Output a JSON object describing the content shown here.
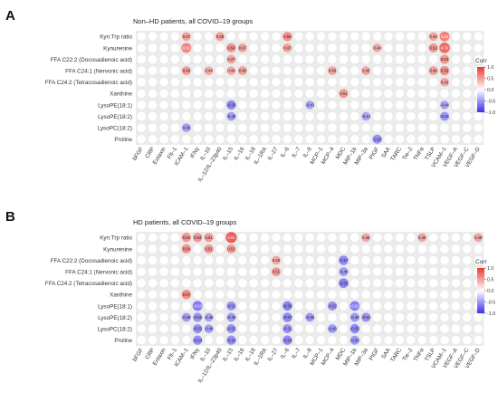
{
  "chart_data": [
    {
      "type": "heatmap",
      "panel_label": "A",
      "title": "Non–HD patients, all COVID–19 groups",
      "rows": [
        "Kyn:Trp ratio",
        "Kynurenine",
        "FFA C22:2 (Docosadienoic acid)",
        "FFA C24:1 (Nervonic acid)",
        "FFA C24:2 (Tetracosadienoic acid)",
        "Xanthine",
        "LysoPE(18:1)",
        "LysoPE(18:2)",
        "LysoPC(18:2)",
        "Proline"
      ],
      "columns": [
        "bFGF",
        "CRP",
        "Eotaxin",
        "Flt–1",
        "ICAM–1",
        "IFNγ",
        "IL–10",
        "IL–12/IL–23p40",
        "IL–15",
        "IL–16",
        "IL–18",
        "IL–1RA",
        "IL–27",
        "IL–6",
        "IL–7",
        "IL–8",
        "MCP–1",
        "MCP–4",
        "MDC",
        "MIP–1b",
        "MIP–3a",
        "PIGF",
        "SAA",
        "TARC",
        "Tie–2",
        "TNFα",
        "TSLP",
        "VCAM–1",
        "VEGF–A",
        "VEGF–C",
        "VEGF–D"
      ],
      "cells": [
        {
          "row": 0,
          "col": 4,
          "value": 0.47
        },
        {
          "row": 0,
          "col": 7,
          "value": 0.48
        },
        {
          "row": 0,
          "col": 13,
          "value": 0.56
        },
        {
          "row": 0,
          "col": 26,
          "value": 0.46
        },
        {
          "row": 0,
          "col": 27,
          "value": 0.63
        },
        {
          "row": 1,
          "col": 4,
          "value": 0.62
        },
        {
          "row": 1,
          "col": 8,
          "value": 0.54
        },
        {
          "row": 1,
          "col": 9,
          "value": 0.47
        },
        {
          "row": 1,
          "col": 13,
          "value": 0.47
        },
        {
          "row": 1,
          "col": 21,
          "value": 0.44
        },
        {
          "row": 1,
          "col": 26,
          "value": 0.52
        },
        {
          "row": 1,
          "col": 27,
          "value": 0.74
        },
        {
          "row": 2,
          "col": 8,
          "value": 0.47
        },
        {
          "row": 2,
          "col": 27,
          "value": 0.53
        },
        {
          "row": 3,
          "col": 4,
          "value": 0.49
        },
        {
          "row": 3,
          "col": 6,
          "value": 0.44
        },
        {
          "row": 3,
          "col": 8,
          "value": 0.44
        },
        {
          "row": 3,
          "col": 9,
          "value": 0.48
        },
        {
          "row": 3,
          "col": 17,
          "value": 0.46
        },
        {
          "row": 3,
          "col": 20,
          "value": 0.45
        },
        {
          "row": 3,
          "col": 26,
          "value": 0.48
        },
        {
          "row": 3,
          "col": 27,
          "value": 0.55
        },
        {
          "row": 4,
          "col": 27,
          "value": 0.45
        },
        {
          "row": 5,
          "col": 18,
          "value": 0.51
        },
        {
          "row": 6,
          "col": 8,
          "value": -0.56
        },
        {
          "row": 6,
          "col": 15,
          "value": -0.43
        },
        {
          "row": 6,
          "col": 27,
          "value": -0.44
        },
        {
          "row": 7,
          "col": 8,
          "value": -0.48
        },
        {
          "row": 7,
          "col": 20,
          "value": -0.44
        },
        {
          "row": 7,
          "col": 27,
          "value": -0.51
        },
        {
          "row": 8,
          "col": 4,
          "value": -0.46
        },
        {
          "row": 9,
          "col": 21,
          "value": -0.53
        }
      ],
      "legend": {
        "title": "Corr",
        "ticks": [
          "1.0",
          "0.5",
          "0.0",
          "-0.5",
          "-1.0"
        ],
        "tick_values": [
          1,
          0.5,
          0,
          -0.5,
          -1
        ],
        "placement": "right"
      },
      "value_range": [
        -1,
        1
      ]
    },
    {
      "type": "heatmap",
      "panel_label": "B",
      "title": "HD patients, all COVID–19 groups",
      "rows": [
        "Kyn:Trp ratio",
        "Kynurenine",
        "FFA C22:2 (Docosadienoic acid)",
        "FFA C24:1 (Nervonic acid)",
        "FFA C24:2 (Tetracosadienoic acid)",
        "Xanthine",
        "LysoPE(18:1)",
        "LysoPE(18:2)",
        "LysoPC(18:2)",
        "Proline"
      ],
      "columns": [
        "bFGF",
        "CRP",
        "Eotaxin",
        "Flt–1",
        "ICAM–1",
        "IFNγ",
        "IL–10",
        "IL–12/IL–23p40",
        "IL–15",
        "IL–16",
        "IL–18",
        "IL–1RA",
        "IL–27",
        "IL–6",
        "IL–7",
        "IL–8",
        "MCP–1",
        "MCP–4",
        "MDC",
        "MIP–1b",
        "MIP–3a",
        "PIGF",
        "SAA",
        "TARC",
        "Tie–2",
        "TNFα",
        "TSLP",
        "VCAM–1",
        "VEGF–A",
        "VEGF–C",
        "VEGF–D"
      ],
      "cells": [
        {
          "row": 0,
          "col": 4,
          "value": 0.54
        },
        {
          "row": 0,
          "col": 5,
          "value": 0.54
        },
        {
          "row": 0,
          "col": 6,
          "value": 0.51
        },
        {
          "row": 0,
          "col": 8,
          "value": 0.81
        },
        {
          "row": 0,
          "col": 20,
          "value": 0.45
        },
        {
          "row": 0,
          "col": 25,
          "value": 0.46
        },
        {
          "row": 0,
          "col": 30,
          "value": 0.46
        },
        {
          "row": 1,
          "col": 4,
          "value": 0.54
        },
        {
          "row": 1,
          "col": 6,
          "value": 0.51
        },
        {
          "row": 1,
          "col": 8,
          "value": 0.51
        },
        {
          "row": 2,
          "col": 12,
          "value": 0.46
        },
        {
          "row": 2,
          "col": 18,
          "value": -0.57
        },
        {
          "row": 3,
          "col": 12,
          "value": 0.51
        },
        {
          "row": 3,
          "col": 18,
          "value": -0.48
        },
        {
          "row": 4,
          "col": 18,
          "value": -0.59
        },
        {
          "row": 5,
          "col": 4,
          "value": 0.57
        },
        {
          "row": 6,
          "col": 5,
          "value": -0.63
        },
        {
          "row": 6,
          "col": 8,
          "value": -0.51
        },
        {
          "row": 6,
          "col": 13,
          "value": -0.58
        },
        {
          "row": 6,
          "col": 17,
          "value": -0.52
        },
        {
          "row": 6,
          "col": 19,
          "value": -0.61
        },
        {
          "row": 7,
          "col": 4,
          "value": -0.48
        },
        {
          "row": 7,
          "col": 5,
          "value": -0.52
        },
        {
          "row": 7,
          "col": 6,
          "value": -0.45
        },
        {
          "row": 7,
          "col": 8,
          "value": -0.49
        },
        {
          "row": 7,
          "col": 13,
          "value": -0.57
        },
        {
          "row": 7,
          "col": 15,
          "value": -0.49
        },
        {
          "row": 7,
          "col": 19,
          "value": -0.49
        },
        {
          "row": 7,
          "col": 20,
          "value": -0.52
        },
        {
          "row": 8,
          "col": 5,
          "value": -0.53
        },
        {
          "row": 8,
          "col": 6,
          "value": -0.46
        },
        {
          "row": 8,
          "col": 8,
          "value": -0.52
        },
        {
          "row": 8,
          "col": 13,
          "value": -0.52
        },
        {
          "row": 8,
          "col": 17,
          "value": -0.48
        },
        {
          "row": 8,
          "col": 19,
          "value": -0.56
        },
        {
          "row": 9,
          "col": 5,
          "value": -0.54
        },
        {
          "row": 9,
          "col": 8,
          "value": -0.54
        },
        {
          "row": 9,
          "col": 13,
          "value": -0.56
        },
        {
          "row": 9,
          "col": 19,
          "value": -0.5
        }
      ],
      "legend": {
        "title": "Corr",
        "ticks": [
          "1.0",
          "0.5",
          "0.0",
          "-0.5",
          "-1.0"
        ],
        "tick_values": [
          1,
          0.5,
          0,
          -0.5,
          -1
        ],
        "placement": "right"
      },
      "value_range": [
        -1,
        1
      ]
    }
  ],
  "colors": {
    "positive": "#e8382f",
    "neutral": "#ffffff",
    "negative": "#3a2ff0",
    "empty_cell": "#d9d9d9",
    "panel_background": "#ebebeb"
  }
}
